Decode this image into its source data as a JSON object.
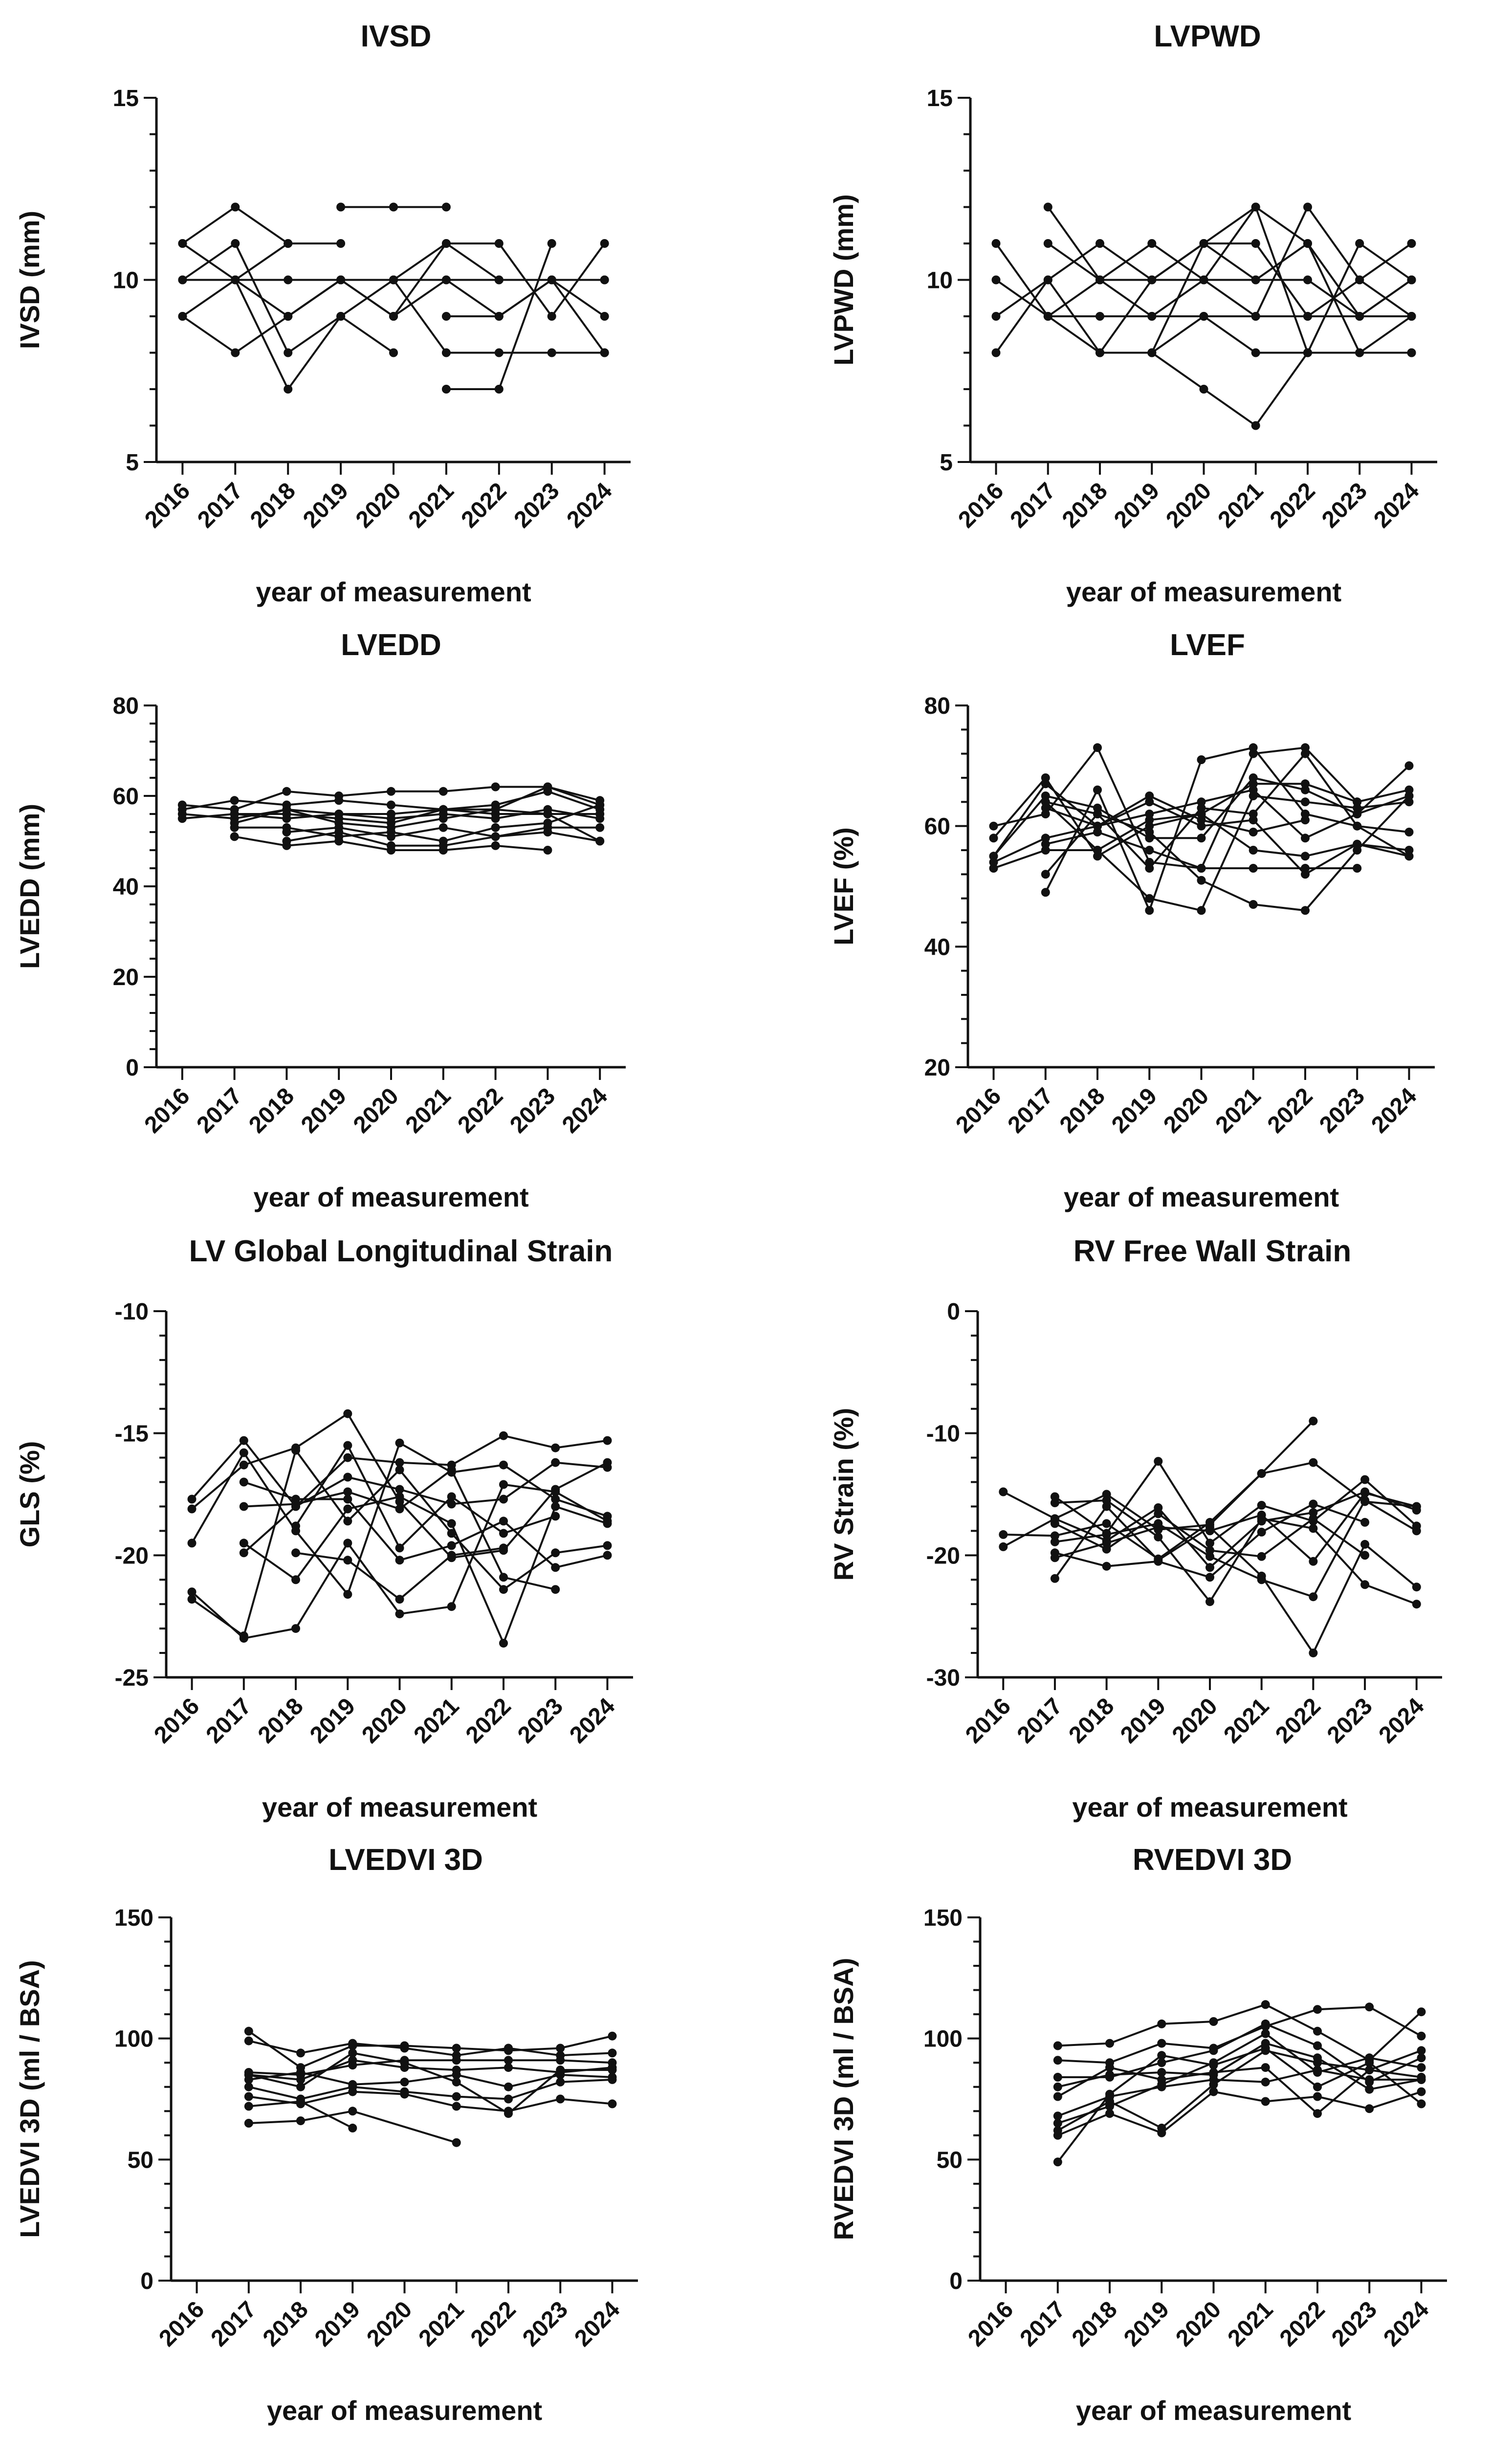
{
  "xlabel": "year of measurement",
  "years": [
    "2016",
    "2017",
    "2018",
    "2019",
    "2020",
    "2021",
    "2022",
    "2023",
    "2024"
  ],
  "line_color": "#111111",
  "chart_data": [
    {
      "type": "line",
      "title": "IVSD",
      "xlabel": "year of measurement",
      "ylabel": "IVSD (mm)",
      "ylim": [
        5,
        15
      ],
      "yticks": [
        5,
        10,
        15
      ],
      "grid": false,
      "series": [
        {
          "values": [
            11,
            12,
            11,
            11
          ]
        },
        {
          "values": [
            11,
            10,
            9,
            10,
            9,
            11,
            10,
            10,
            10
          ]
        },
        {
          "values": [
            10,
            11,
            8,
            9,
            8
          ]
        },
        {
          "values": [
            10,
            10,
            10,
            10,
            10,
            10,
            10,
            10,
            10
          ]
        },
        {
          "values": [
            9,
            10,
            11
          ]
        },
        {
          "values": [
            9,
            8,
            9,
            10,
            9
          ]
        },
        {
          "values": [
            null,
            10,
            7,
            9,
            10,
            11,
            11,
            9,
            11
          ]
        },
        {
          "values": [
            null,
            null,
            9,
            10
          ]
        },
        {
          "values": [
            null,
            null,
            null,
            12,
            12,
            12
          ]
        },
        {
          "values": [
            null,
            null,
            null,
            null,
            9,
            10,
            9,
            10,
            8
          ]
        },
        {
          "values": [
            null,
            null,
            null,
            null,
            10,
            8,
            8,
            8,
            8
          ]
        },
        {
          "values": [
            null,
            null,
            null,
            null,
            null,
            7,
            7,
            11
          ]
        },
        {
          "values": [
            null,
            null,
            null,
            null,
            null,
            9,
            9,
            10,
            9
          ]
        }
      ]
    },
    {
      "type": "line",
      "title": "LVPWD",
      "xlabel": "year of measurement",
      "ylabel": "LVPWD (mm)",
      "ylim": [
        5,
        15
      ],
      "yticks": [
        5,
        10,
        15
      ],
      "grid": false,
      "series": [
        {
          "values": [
            11,
            9,
            9,
            9,
            9,
            9,
            9,
            9,
            9
          ]
        },
        {
          "values": [
            10,
            9,
            10,
            10,
            11,
            11,
            9,
            10,
            9
          ]
        },
        {
          "values": [
            9,
            10,
            8,
            8,
            7,
            6,
            8,
            8,
            8
          ]
        },
        {
          "values": [
            8,
            10,
            11,
            10,
            11,
            12,
            11,
            9,
            10
          ]
        },
        {
          "values": [
            null,
            12,
            10,
            11,
            10,
            9,
            12,
            10,
            11
          ]
        },
        {
          "values": [
            null,
            11,
            10,
            9,
            10,
            10,
            11,
            8,
            9
          ]
        },
        {
          "values": [
            null,
            9,
            8,
            8,
            9,
            8,
            8,
            8,
            8
          ]
        },
        {
          "values": [
            null,
            null,
            8,
            10,
            10,
            12,
            8,
            11,
            10
          ]
        },
        {
          "values": [
            null,
            null,
            null,
            8,
            11,
            10,
            10,
            9,
            10
          ]
        }
      ]
    },
    {
      "type": "line",
      "title": "LVEDD",
      "xlabel": "year of measurement",
      "ylabel": "LVEDD (mm)",
      "ylim": [
        0,
        80
      ],
      "yticks": [
        0,
        20,
        40,
        60,
        80
      ],
      "grid": false,
      "series": [
        {
          "values": [
            58,
            57,
            61,
            60,
            61,
            61,
            62,
            62,
            59
          ]
        },
        {
          "values": [
            57,
            59,
            58,
            59,
            58,
            57,
            58,
            61,
            57
          ]
        },
        {
          "values": [
            56,
            55,
            57,
            56,
            56,
            57,
            56,
            56,
            56
          ]
        },
        {
          "values": [
            55,
            56,
            56,
            55,
            54,
            57,
            57,
            62,
            58
          ]
        },
        {
          "values": [
            null,
            56,
            55,
            56,
            55,
            56,
            55,
            57,
            55
          ]
        },
        {
          "values": [
            null,
            54,
            57,
            54,
            53,
            55,
            57,
            56,
            50
          ]
        },
        {
          "values": [
            null,
            53,
            53,
            51,
            52,
            50,
            53,
            54,
            58
          ]
        },
        {
          "values": [
            null,
            51,
            49,
            50,
            48,
            48,
            49,
            48,
            null
          ]
        },
        {
          "values": [
            null,
            null,
            50,
            52,
            49,
            49,
            51,
            52,
            50
          ]
        },
        {
          "values": [
            null,
            null,
            52,
            53,
            51,
            53,
            51,
            53,
            53
          ]
        }
      ]
    },
    {
      "type": "line",
      "title": "LVEF",
      "xlabel": "year of measurement",
      "ylabel": "LVEF (%)",
      "ylim": [
        20,
        80
      ],
      "yticks": [
        20,
        40,
        60,
        80
      ],
      "grid": false,
      "series": [
        {
          "values": [
            60,
            62,
            73,
            54,
            53,
            72,
            73,
            64,
            66
          ]
        },
        {
          "values": [
            58,
            68,
            55,
            60,
            62,
            56,
            55,
            57,
            56
          ]
        },
        {
          "values": [
            55,
            67,
            60,
            64,
            60,
            61,
            52,
            57,
            55
          ]
        },
        {
          "values": [
            55,
            65,
            63,
            58,
            58,
            68,
            66,
            62,
            65
          ]
        },
        {
          "values": [
            54,
            58,
            60,
            62,
            64,
            66,
            58,
            62,
            70
          ]
        },
        {
          "values": [
            53,
            56,
            56,
            48,
            46,
            65,
            64,
            63,
            64
          ]
        },
        {
          "values": [
            null,
            57,
            59,
            56,
            53,
            53,
            53,
            53,
            null
          ]
        },
        {
          "values": [
            null,
            52,
            62,
            53,
            63,
            62,
            72,
            60,
            59
          ]
        },
        {
          "values": [
            null,
            49,
            66,
            46,
            71,
            73,
            62,
            60,
            55
          ]
        },
        {
          "values": [
            null,
            64,
            62,
            59,
            51,
            47,
            46,
            56,
            65
          ]
        },
        {
          "values": [
            null,
            63,
            60,
            65,
            61,
            59,
            61,
            null,
            null
          ]
        },
        {
          "values": [
            null,
            64,
            56,
            61,
            62,
            67,
            67,
            64,
            null
          ]
        }
      ]
    },
    {
      "type": "line",
      "title": "LV Global Longitudinal Strain",
      "xlabel": "year of measurement",
      "ylabel": "GLS (%)",
      "ylim": [
        -25,
        -10
      ],
      "yticks": [
        -25,
        -20,
        -15,
        -10
      ],
      "grid": false,
      "series": [
        {
          "values": [
            -17.7,
            -15.3,
            -18.0,
            -16.0,
            -16.2,
            -16.3,
            -15.1,
            -15.6,
            -15.3
          ]
        },
        {
          "values": [
            -18.1,
            -16.3,
            -15.6,
            -14.2,
            -17.8,
            -20.1,
            -19.8,
            -17.3,
            -16.2
          ]
        },
        {
          "values": [
            -19.5,
            -15.8,
            -19.0,
            -21.6,
            -15.4,
            -16.6,
            -16.3,
            -17.7,
            -18.4
          ]
        },
        {
          "values": [
            -21.8,
            -23.3,
            -15.7,
            -18.6,
            -16.5,
            -19.1,
            -21.4,
            -19.9,
            -19.6
          ]
        },
        {
          "values": [
            -21.5,
            -23.4,
            -23.0,
            -19.5,
            -22.4,
            -22.1,
            -17.1,
            -17.4,
            -18.6
          ]
        },
        {
          "values": [
            null,
            -18.0,
            -17.9,
            -17.4,
            -18.1,
            -16.5,
            -20.9,
            -21.4,
            null
          ]
        },
        {
          "values": [
            null,
            -19.5,
            -21.0,
            -18.1,
            -17.6,
            -18.7,
            -23.6,
            -18.0,
            -18.7
          ]
        },
        {
          "values": [
            null,
            -19.9,
            -18.0,
            -16.8,
            -17.3,
            -17.9,
            -17.7,
            -16.2,
            -16.4
          ]
        },
        {
          "values": [
            null,
            -17.0,
            -17.7,
            -17.7,
            -20.2,
            -19.6,
            -18.6,
            -20.5,
            -20.0
          ]
        },
        {
          "values": [
            null,
            null,
            -18.8,
            -15.5,
            -19.7,
            -17.6,
            -19.1,
            -18.4,
            null
          ]
        },
        {
          "values": [
            null,
            null,
            -19.9,
            -20.2,
            -21.8,
            -20.0,
            -19.7,
            null,
            null
          ]
        }
      ]
    },
    {
      "type": "line",
      "title": "RV Free Wall Strain",
      "xlabel": "year of measurement",
      "ylabel": "RV Strain (%)",
      "ylim": [
        -30,
        0
      ],
      "yticks": [
        -30,
        -20,
        -10,
        0
      ],
      "grid": false,
      "series": [
        {
          "values": [
            -14.8,
            -17.0,
            -15.0,
            -17.9,
            -17.5,
            -13.3,
            -9.0,
            null,
            null
          ]
        },
        {
          "values": [
            -18.3,
            -18.4,
            -17.4,
            -20.3,
            -17.3,
            -13.3,
            -12.4,
            -15.6,
            -16.0
          ]
        },
        {
          "values": [
            -19.3,
            -17.0,
            -18.8,
            -16.1,
            -21.0,
            -17.2,
            -16.5,
            -14.8,
            -16.3
          ]
        },
        {
          "values": [
            null,
            -15.2,
            -18.2,
            -12.3,
            -19.0,
            -15.9,
            -17.2,
            -13.8,
            -17.6
          ]
        },
        {
          "values": [
            null,
            -15.7,
            -15.5,
            -18.5,
            -23.8,
            -17.0,
            -17.8,
            -22.4,
            -24.0
          ]
        },
        {
          "values": [
            null,
            -21.9,
            -16.0,
            -20.4,
            -17.7,
            -21.7,
            -28.0,
            -19.1,
            -22.6
          ]
        },
        {
          "values": [
            null,
            -20.2,
            -19.0,
            -17.7,
            -18.0,
            -16.7,
            -20.5,
            -14.9,
            -16.0
          ]
        },
        {
          "values": [
            null,
            -18.9,
            -18.3,
            -17.4,
            -20.1,
            -22.0,
            -23.4,
            -15.5,
            -18.0
          ]
        },
        {
          "values": [
            null,
            -19.8,
            -20.9,
            -20.5,
            -21.8,
            -18.1,
            -15.8,
            -17.3,
            null
          ]
        },
        {
          "values": [
            null,
            -17.4,
            -19.5,
            -16.6,
            -19.6,
            -20.1,
            -17.0,
            -20.0,
            null
          ]
        }
      ]
    },
    {
      "type": "line",
      "title": "LVEDVI 3D",
      "xlabel": "year of measurement",
      "ylabel": "LVEDVI 3D (ml / BSA)",
      "ylim": [
        0,
        150
      ],
      "yticks": [
        0,
        50,
        100,
        150
      ],
      "grid": false,
      "series": [
        {
          "values": [
            null,
            103,
            88,
            97,
            97,
            96,
            95,
            96,
            101
          ]
        },
        {
          "values": [
            null,
            99,
            94,
            98,
            96,
            93,
            96,
            93,
            94
          ]
        },
        {
          "values": [
            null,
            86,
            85,
            89,
            91,
            91,
            91,
            91,
            90
          ]
        },
        {
          "values": [
            null,
            85,
            83,
            91,
            88,
            87,
            88,
            86,
            88
          ]
        },
        {
          "values": [
            null,
            83,
            86,
            81,
            82,
            85,
            80,
            85,
            84
          ]
        },
        {
          "values": [
            null,
            80,
            75,
            80,
            78,
            76,
            75,
            82,
            83
          ]
        },
        {
          "values": [
            null,
            76,
            73,
            78,
            77,
            72,
            70,
            75,
            73
          ]
        },
        {
          "values": [
            null,
            72,
            74,
            63,
            null,
            null,
            null,
            null,
            null
          ]
        },
        {
          "values": [
            null,
            65,
            66,
            70,
            null,
            57,
            null,
            null,
            null
          ]
        },
        {
          "values": [
            null,
            85,
            80,
            94,
            90,
            82,
            69,
            87,
            87
          ]
        }
      ]
    },
    {
      "type": "line",
      "title": "RVEDVI 3D",
      "xlabel": "year of measurement",
      "ylabel": "RVEDVI 3D (ml / BSA)",
      "ylim": [
        0,
        150
      ],
      "yticks": [
        0,
        50,
        100,
        150
      ],
      "grid": false,
      "series": [
        {
          "values": [
            null,
            97,
            98,
            106,
            107,
            114,
            103,
            91,
            111
          ]
        },
        {
          "values": [
            null,
            91,
            90,
            98,
            96,
            105,
            112,
            113,
            101
          ]
        },
        {
          "values": [
            null,
            84,
            84,
            90,
            95,
            106,
            97,
            82,
            92
          ]
        },
        {
          "values": [
            null,
            80,
            85,
            86,
            85,
            98,
            92,
            79,
            83
          ]
        },
        {
          "values": [
            null,
            68,
            76,
            80,
            83,
            82,
            87,
            83,
            83
          ]
        },
        {
          "values": [
            null,
            62,
            74,
            63,
            81,
            95,
            90,
            87,
            84
          ]
        },
        {
          "values": [
            null,
            60,
            69,
            61,
            78,
            74,
            76,
            71,
            78
          ]
        },
        {
          "values": [
            null,
            49,
            77,
            93,
            89,
            96,
            80,
            90,
            73
          ]
        },
        {
          "values": [
            null,
            65,
            72,
            81,
            90,
            102,
            86,
            92,
            88
          ]
        },
        {
          "values": [
            null,
            76,
            88,
            83,
            86,
            88,
            69,
            87,
            95
          ]
        }
      ]
    }
  ]
}
